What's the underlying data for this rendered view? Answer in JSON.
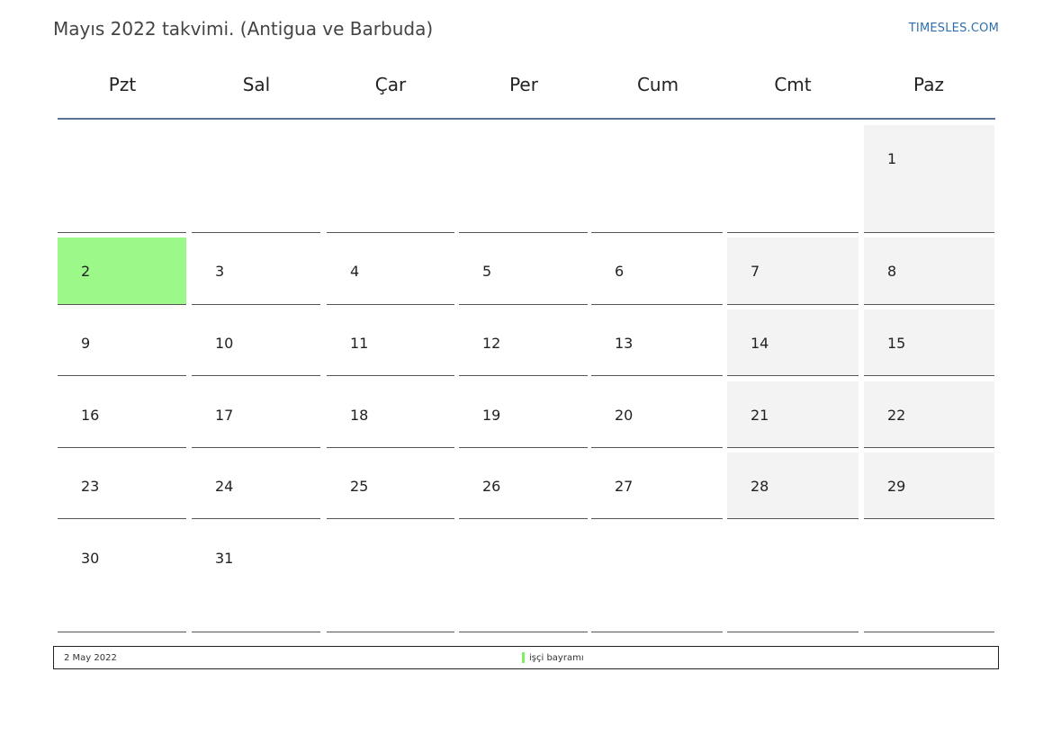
{
  "header": {
    "title": "Mayıs 2022 takvimi. (Antigua ve Barbuda)",
    "brand": "TIMESLES.COM"
  },
  "weekdays": [
    "Pzt",
    "Sal",
    "Çar",
    "Per",
    "Cum",
    "Cmt",
    "Paz"
  ],
  "weeks": [
    [
      "",
      "",
      "",
      "",
      "",
      "",
      "1"
    ],
    [
      "2",
      "3",
      "4",
      "5",
      "6",
      "7",
      "8"
    ],
    [
      "9",
      "10",
      "11",
      "12",
      "13",
      "14",
      "15"
    ],
    [
      "16",
      "17",
      "18",
      "19",
      "20",
      "21",
      "22"
    ],
    [
      "23",
      "24",
      "25",
      "26",
      "27",
      "28",
      "29"
    ],
    [
      "30",
      "31",
      "",
      "",
      "",
      "",
      ""
    ]
  ],
  "holiday_day": "2",
  "colors": {
    "holiday": "#9bf889",
    "weekend": "#f3f3f3",
    "brand": "#2f6fad",
    "header_line": "#5a7396"
  },
  "legend": {
    "date": "2 May 2022",
    "label": "işçi bayramı"
  }
}
